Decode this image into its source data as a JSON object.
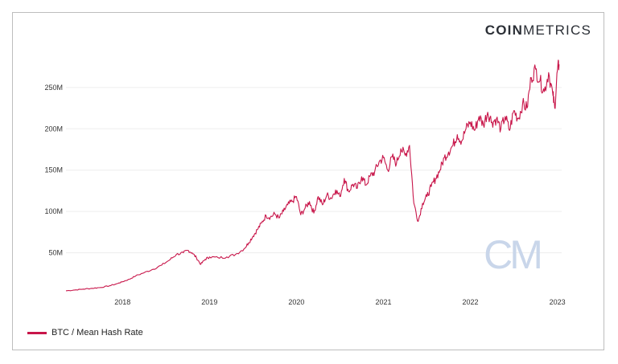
{
  "brand": {
    "bold": "COIN",
    "light": "METRICS"
  },
  "watermark": "CM",
  "colors": {
    "series": "#c8164a",
    "watermark": "#c9d6ea"
  },
  "chart_data": {
    "type": "line",
    "title": "",
    "xlabel": "",
    "ylabel": "",
    "legend_position": "bottom-left",
    "grid": true,
    "xlim": [
      2017.35,
      2023.05
    ],
    "ylim": [
      0,
      280
    ],
    "y_ticks": [
      {
        "value": 50,
        "label": "50M"
      },
      {
        "value": 100,
        "label": "100M"
      },
      {
        "value": 150,
        "label": "150M"
      },
      {
        "value": 200,
        "label": "200M"
      },
      {
        "value": 250,
        "label": "250M"
      }
    ],
    "x_ticks": [
      {
        "value": 2018,
        "label": "2018"
      },
      {
        "value": 2019,
        "label": "2019"
      },
      {
        "value": 2020,
        "label": "2020"
      },
      {
        "value": 2021,
        "label": "2021"
      },
      {
        "value": 2022,
        "label": "2022"
      },
      {
        "value": 2023,
        "label": "2023"
      }
    ],
    "series": [
      {
        "name": "BTC / Mean Hash Rate",
        "x": [
          2017.35,
          2017.45,
          2017.55,
          2017.65,
          2017.75,
          2017.85,
          2017.95,
          2018.0,
          2018.08,
          2018.15,
          2018.25,
          2018.35,
          2018.45,
          2018.55,
          2018.62,
          2018.7,
          2018.75,
          2018.8,
          2018.85,
          2018.9,
          2018.95,
          2019.0,
          2019.1,
          2019.2,
          2019.3,
          2019.4,
          2019.45,
          2019.5,
          2019.55,
          2019.6,
          2019.65,
          2019.7,
          2019.75,
          2019.8,
          2019.85,
          2019.9,
          2019.95,
          2020.0,
          2020.05,
          2020.1,
          2020.15,
          2020.2,
          2020.25,
          2020.3,
          2020.35,
          2020.4,
          2020.45,
          2020.5,
          2020.55,
          2020.6,
          2020.65,
          2020.7,
          2020.75,
          2020.8,
          2020.85,
          2020.9,
          2020.95,
          2021.0,
          2021.05,
          2021.1,
          2021.15,
          2021.2,
          2021.25,
          2021.3,
          2021.35,
          2021.4,
          2021.45,
          2021.5,
          2021.55,
          2021.6,
          2021.65,
          2021.7,
          2021.75,
          2021.8,
          2021.85,
          2021.9,
          2021.95,
          2022.0,
          2022.05,
          2022.1,
          2022.15,
          2022.2,
          2022.25,
          2022.3,
          2022.35,
          2022.4,
          2022.45,
          2022.5,
          2022.55,
          2022.6,
          2022.65,
          2022.7,
          2022.75,
          2022.8,
          2022.85,
          2022.9,
          2022.95,
          2022.97,
          2023.0,
          2023.02
        ],
        "values": [
          4,
          5,
          6,
          7,
          8,
          10,
          13,
          15,
          18,
          22,
          26,
          30,
          35,
          42,
          48,
          50,
          53,
          50,
          44,
          36,
          42,
          45,
          44,
          45,
          48,
          55,
          62,
          70,
          78,
          86,
          95,
          93,
          97,
          92,
          100,
          108,
          112,
          118,
          96,
          104,
          112,
          98,
          118,
          108,
          120,
          116,
          126,
          118,
          140,
          124,
          133,
          128,
          142,
          132,
          143,
          148,
          160,
          165,
          150,
          166,
          158,
          176,
          168,
          180,
          110,
          88,
          110,
          118,
          130,
          140,
          150,
          165,
          172,
          180,
          193,
          185,
          200,
          208,
          198,
          215,
          205,
          220,
          208,
          212,
          200,
          215,
          198,
          222,
          212,
          230,
          225,
          262,
          272,
          258,
          245,
          268,
          240,
          225,
          270,
          278
        ]
      }
    ]
  }
}
